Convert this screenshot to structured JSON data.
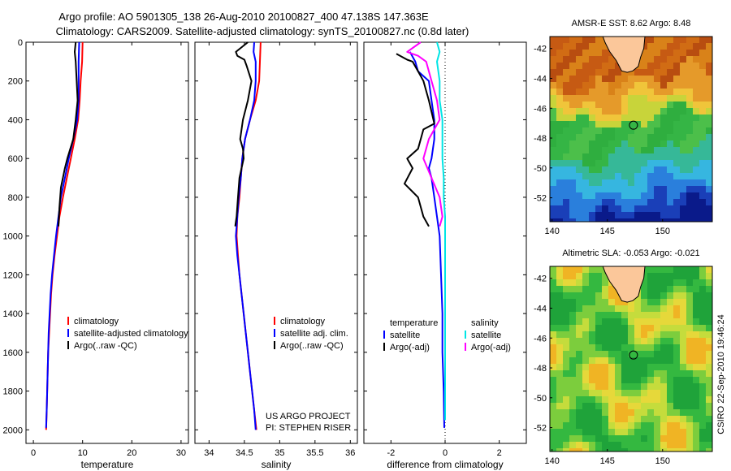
{
  "header": {
    "title_line1": "Argo profile: AO 5901305_138 26-Aug-2010 20100827_400 47.138S 147.363E",
    "title_line2": "Climatology: CARS2009. Satellite-adjusted climatology: synTS_20100827.nc (0.8d later)"
  },
  "side_label": "CSIRO 22-Sep-2010 19:46:24",
  "colors": {
    "climatology": "#ff0000",
    "satellite": "#0000ff",
    "argo": "#000000",
    "salinity_satellite": "#00e5e5",
    "salinity_argo": "#ff00ff"
  },
  "depth_axis": {
    "ticks": [
      "0",
      "200",
      "400",
      "600",
      "800",
      "1000",
      "1200",
      "1400",
      "1600",
      "1800",
      "2000"
    ]
  },
  "chart_data": [
    {
      "id": "temperature",
      "type": "line",
      "xlabel": "temperature",
      "ylabel": "",
      "xlim": [
        -1.5,
        31.5
      ],
      "ylim": [
        2070,
        0
      ],
      "xticks": [
        "0",
        "10",
        "20",
        "30"
      ],
      "legend_position": "lower-center",
      "series": [
        {
          "name": "climatology",
          "color": "#ff0000",
          "points": [
            [
              10.0,
              0
            ],
            [
              9.9,
              100
            ],
            [
              9.6,
              200
            ],
            [
              9.4,
              300
            ],
            [
              9.1,
              400
            ],
            [
              8.4,
              500
            ],
            [
              7.6,
              600
            ],
            [
              6.8,
              700
            ],
            [
              6.0,
              800
            ],
            [
              5.3,
              900
            ],
            [
              4.8,
              1000
            ],
            [
              4.3,
              1100
            ],
            [
              3.9,
              1200
            ],
            [
              3.6,
              1300
            ],
            [
              3.4,
              1400
            ],
            [
              3.2,
              1500
            ],
            [
              3.0,
              1600
            ],
            [
              2.9,
              1700
            ],
            [
              2.8,
              1800
            ],
            [
              2.7,
              1900
            ],
            [
              2.6,
              2000
            ]
          ]
        },
        {
          "name": "satellite-adjusted climatology",
          "color": "#0000ff",
          "points": [
            [
              9.3,
              0
            ],
            [
              9.2,
              100
            ],
            [
              9.2,
              200
            ],
            [
              9.2,
              300
            ],
            [
              8.9,
              400
            ],
            [
              8.1,
              500
            ],
            [
              7.2,
              600
            ],
            [
              6.4,
              700
            ],
            [
              5.6,
              800
            ],
            [
              5.1,
              900
            ],
            [
              4.6,
              1000
            ],
            [
              4.2,
              1100
            ],
            [
              3.8,
              1200
            ],
            [
              3.5,
              1300
            ],
            [
              3.3,
              1400
            ],
            [
              3.1,
              1500
            ],
            [
              3.0,
              1600
            ],
            [
              2.9,
              1700
            ],
            [
              2.8,
              1800
            ],
            [
              2.7,
              1900
            ],
            [
              2.6,
              1990
            ]
          ]
        },
        {
          "name": "Argo(..raw -QC)",
          "color": "#000000",
          "points": [
            [
              8.6,
              0
            ],
            [
              8.4,
              50
            ],
            [
              8.6,
              100
            ],
            [
              8.8,
              200
            ],
            [
              9.0,
              300
            ],
            [
              8.6,
              400
            ],
            [
              8.1,
              500
            ],
            [
              6.9,
              600
            ],
            [
              6.4,
              650
            ],
            [
              5.6,
              750
            ],
            [
              5.3,
              850
            ],
            [
              5.1,
              950
            ]
          ]
        }
      ]
    },
    {
      "id": "salinity",
      "type": "line",
      "xlabel": "salinity",
      "ylabel": "",
      "xlim": [
        33.8,
        36.1
      ],
      "ylim": [
        2070,
        0
      ],
      "xticks": [
        "34",
        "34.5",
        "35",
        "35.5",
        "36"
      ],
      "legend_position": "lower-right",
      "series": [
        {
          "name": "climatology",
          "color": "#ff0000",
          "points": [
            [
              34.73,
              0
            ],
            [
              34.72,
              100
            ],
            [
              34.71,
              200
            ],
            [
              34.66,
              300
            ],
            [
              34.58,
              400
            ],
            [
              34.51,
              500
            ],
            [
              34.47,
              600
            ],
            [
              34.45,
              700
            ],
            [
              34.43,
              800
            ],
            [
              34.4,
              900
            ],
            [
              34.39,
              1000
            ],
            [
              34.41,
              1100
            ],
            [
              34.43,
              1200
            ],
            [
              34.46,
              1300
            ],
            [
              34.49,
              1400
            ],
            [
              34.52,
              1500
            ],
            [
              34.55,
              1600
            ],
            [
              34.58,
              1700
            ],
            [
              34.61,
              1800
            ],
            [
              34.64,
              1900
            ],
            [
              34.67,
              2000
            ]
          ]
        },
        {
          "name": "satellite adj. clim.",
          "color": "#0000ff",
          "points": [
            [
              34.64,
              0
            ],
            [
              34.63,
              50
            ],
            [
              34.66,
              100
            ],
            [
              34.66,
              200
            ],
            [
              34.64,
              300
            ],
            [
              34.58,
              400
            ],
            [
              34.51,
              500
            ],
            [
              34.47,
              600
            ],
            [
              34.45,
              700
            ],
            [
              34.42,
              800
            ],
            [
              34.4,
              900
            ],
            [
              34.38,
              1000
            ],
            [
              34.4,
              1100
            ],
            [
              34.43,
              1200
            ],
            [
              34.46,
              1300
            ],
            [
              34.49,
              1400
            ],
            [
              34.52,
              1500
            ],
            [
              34.55,
              1600
            ],
            [
              34.58,
              1700
            ],
            [
              34.61,
              1800
            ],
            [
              34.64,
              1900
            ],
            [
              34.66,
              2000
            ]
          ]
        },
        {
          "name": "Argo(..raw -QC)",
          "color": "#000000",
          "points": [
            [
              34.55,
              0
            ],
            [
              34.38,
              50
            ],
            [
              34.4,
              70
            ],
            [
              34.5,
              90
            ],
            [
              34.53,
              120
            ],
            [
              34.6,
              200
            ],
            [
              34.55,
              300
            ],
            [
              34.48,
              400
            ],
            [
              34.44,
              500
            ],
            [
              34.48,
              550
            ],
            [
              34.49,
              600
            ],
            [
              34.43,
              700
            ],
            [
              34.41,
              800
            ],
            [
              34.39,
              900
            ],
            [
              34.37,
              950
            ]
          ]
        }
      ]
    },
    {
      "id": "difference",
      "type": "line",
      "xlabel": "difference from climatology",
      "ylabel": "",
      "xlim": [
        -3,
        3
      ],
      "ylim": [
        2070,
        0
      ],
      "xticks": [
        "-2",
        "0",
        "2"
      ],
      "zero_line": "dotted",
      "legend_position": "lower-center",
      "legend_groups": [
        "temperature",
        "salinity"
      ],
      "series": [
        {
          "name": "satellite",
          "group": "temperature",
          "color": "#0000ff",
          "points": [
            [
              -1.3,
              50
            ],
            [
              -1.1,
              100
            ],
            [
              -1.0,
              150
            ],
            [
              -0.6,
              200
            ],
            [
              -0.5,
              300
            ],
            [
              -0.4,
              400
            ],
            [
              -0.4,
              500
            ],
            [
              -0.5,
              600
            ],
            [
              -0.6,
              650
            ],
            [
              -0.5,
              700
            ],
            [
              -0.4,
              800
            ],
            [
              -0.3,
              900
            ],
            [
              -0.2,
              1000
            ],
            [
              -0.15,
              1200
            ],
            [
              -0.1,
              1400
            ],
            [
              -0.1,
              1600
            ],
            [
              -0.05,
              1800
            ],
            [
              -0.03,
              1990
            ]
          ]
        },
        {
          "name": "Argo(-adj)",
          "group": "temperature",
          "color": "#000000",
          "points": [
            [
              -1.8,
              60
            ],
            [
              -1.4,
              90
            ],
            [
              -1.2,
              100
            ],
            [
              -1.0,
              150
            ],
            [
              -0.8,
              200
            ],
            [
              -0.6,
              300
            ],
            [
              -0.4,
              420
            ],
            [
              -0.8,
              450
            ],
            [
              -1.0,
              550
            ],
            [
              -1.4,
              600
            ],
            [
              -1.2,
              650
            ],
            [
              -1.5,
              730
            ],
            [
              -1.0,
              800
            ],
            [
              -0.8,
              900
            ],
            [
              -0.6,
              950
            ]
          ]
        },
        {
          "name": "satellite",
          "group": "salinity",
          "color": "#00e5e5",
          "points": [
            [
              -0.3,
              0
            ],
            [
              -0.2,
              50
            ],
            [
              -0.3,
              100
            ],
            [
              -0.2,
              200
            ],
            [
              -0.2,
              300
            ],
            [
              -0.1,
              400
            ],
            [
              -0.1,
              500
            ],
            [
              -0.1,
              600
            ],
            [
              -0.05,
              700
            ],
            [
              -0.05,
              800
            ],
            [
              0.0,
              900
            ],
            [
              0.0,
              1000
            ],
            [
              0.0,
              1200
            ],
            [
              0.0,
              1400
            ],
            [
              0.0,
              1600
            ],
            [
              0.0,
              1800
            ],
            [
              0.0,
              1950
            ]
          ]
        },
        {
          "name": "Argo(-adj)",
          "group": "salinity",
          "color": "#ff00ff",
          "points": [
            [
              -0.9,
              0
            ],
            [
              -1.4,
              50
            ],
            [
              -1.0,
              70
            ],
            [
              -0.7,
              100
            ],
            [
              -0.5,
              200
            ],
            [
              -0.3,
              300
            ],
            [
              -0.2,
              400
            ],
            [
              -0.6,
              500
            ],
            [
              -0.8,
              600
            ],
            [
              -0.5,
              700
            ],
            [
              -0.2,
              800
            ],
            [
              -0.1,
              900
            ],
            [
              -0.2,
              950
            ]
          ]
        }
      ]
    }
  ],
  "maps": [
    {
      "id": "sst-map",
      "title": "AMSR-E SST: 8.62 Argo: 8.48",
      "xticks": [
        "140",
        "145",
        "150"
      ],
      "yticks": [
        "-42",
        "-44",
        "-46",
        "-48",
        "-50",
        "-52"
      ],
      "lon_range": [
        139.8,
        154.5
      ],
      "lat_range": [
        -53.6,
        -41.2
      ],
      "marker": {
        "lon": 147.363,
        "lat": -47.138
      }
    },
    {
      "id": "sla-map",
      "title": "Altimetric SLA: -0.053 Argo: -0.021",
      "xticks": [
        "140",
        "145",
        "150"
      ],
      "yticks": [
        "-42",
        "-44",
        "-46",
        "-48",
        "-50",
        "-52"
      ],
      "lon_range": [
        139.8,
        154.5
      ],
      "lat_range": [
        -53.6,
        -41.2
      ],
      "marker": {
        "lon": 147.363,
        "lat": -47.138
      }
    }
  ],
  "credits": {
    "line1": "US ARGO PROJECT",
    "line2": "PI: STEPHEN RISER"
  }
}
